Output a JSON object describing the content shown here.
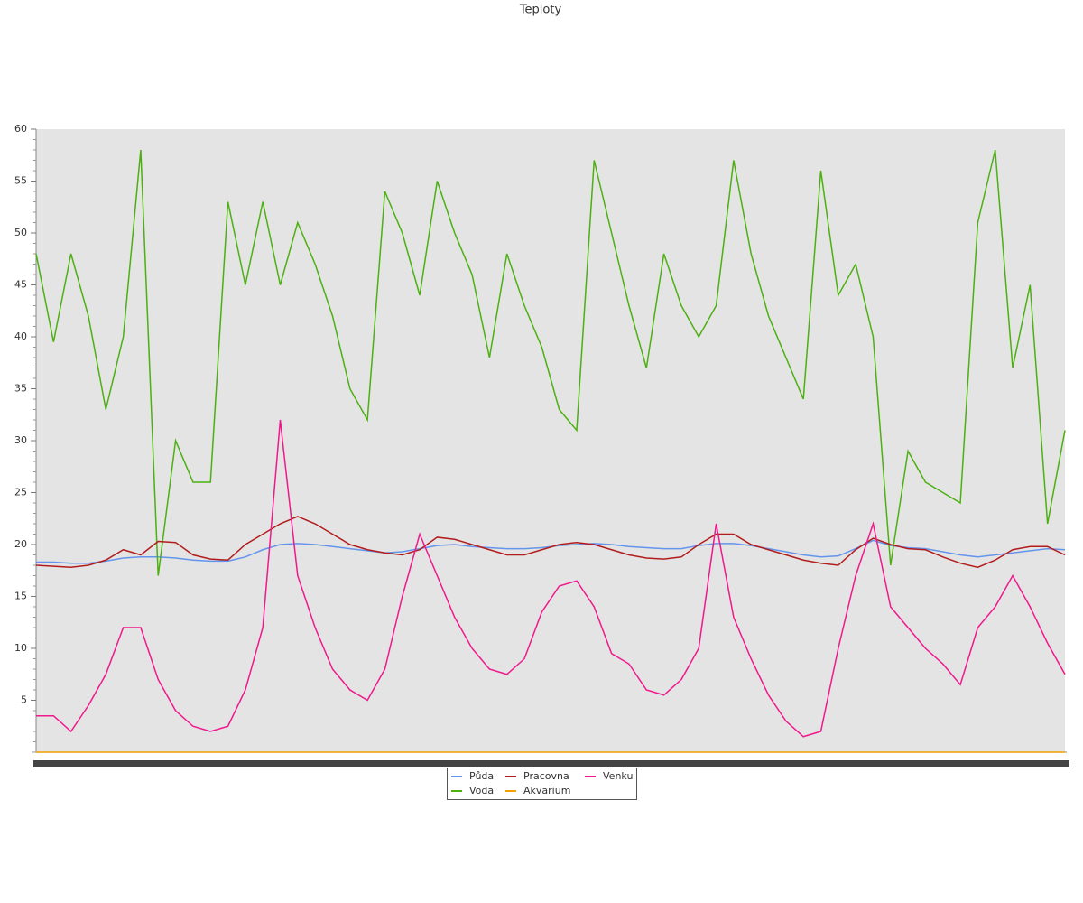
{
  "chart_data": {
    "type": "line",
    "title": "Teploty",
    "ylim": [
      0,
      60
    ],
    "yticks": [
      5,
      10,
      15,
      20,
      25,
      30,
      35,
      40,
      45,
      50,
      55,
      60
    ],
    "grid": false,
    "legend": "bottom",
    "series": [
      {
        "name": "Půda",
        "color": "#6495ed",
        "values": [
          18.3,
          18.3,
          18.2,
          18.2,
          18.4,
          18.7,
          18.8,
          18.8,
          18.7,
          18.5,
          18.4,
          18.4,
          18.8,
          19.5,
          20,
          20.1,
          20,
          19.8,
          19.6,
          19.4,
          19.2,
          19.3,
          19.6,
          19.9,
          20,
          19.8,
          19.7,
          19.6,
          19.6,
          19.7,
          19.9,
          20,
          20.1,
          20,
          19.8,
          19.7,
          19.6,
          19.6,
          19.9,
          20.1,
          20.1,
          19.9,
          19.6,
          19.3,
          19,
          18.8,
          18.9,
          19.6,
          20.4,
          19.9,
          19.7,
          19.6,
          19.3,
          19,
          18.8,
          19,
          19.2,
          19.4,
          19.6,
          19.5
        ]
      },
      {
        "name": "Voda",
        "color": "#4cb010",
        "values": [
          48,
          39.5,
          48,
          42,
          33,
          40,
          58,
          17,
          30,
          26,
          26,
          53,
          45,
          53,
          45,
          51,
          47,
          42,
          35,
          32,
          54,
          50,
          44,
          55,
          50,
          46,
          38,
          48,
          43,
          39,
          33,
          31,
          57,
          50,
          43,
          37,
          48,
          43,
          40,
          43,
          57,
          48,
          42,
          38,
          34,
          56,
          44,
          47,
          40,
          18,
          29,
          26,
          25,
          24,
          51,
          58,
          37,
          45,
          22,
          31
        ]
      },
      {
        "name": "Pracovna",
        "color": "#b21c1c",
        "values": [
          18,
          17.9,
          17.8,
          18,
          18.5,
          19.5,
          19,
          20.3,
          20.2,
          19,
          18.6,
          18.5,
          20,
          21,
          22,
          22.7,
          22,
          21,
          20,
          19.5,
          19.2,
          19,
          19.5,
          20.7,
          20.5,
          20,
          19.5,
          19,
          19,
          19.5,
          20,
          20.2,
          20,
          19.5,
          19,
          18.7,
          18.6,
          18.8,
          20,
          21,
          21,
          20,
          19.5,
          19,
          18.5,
          18.2,
          18,
          19.5,
          20.6,
          20,
          19.6,
          19.5,
          18.8,
          18.2,
          17.8,
          18.5,
          19.5,
          19.8,
          19.8,
          19
        ]
      },
      {
        "name": "Akvarium",
        "color": "#f0a000",
        "values": [
          0,
          0,
          0,
          0,
          0,
          0,
          0,
          0,
          0,
          0,
          0,
          0,
          0,
          0,
          0,
          0,
          0,
          0,
          0,
          0,
          0,
          0,
          0,
          0,
          0,
          0,
          0,
          0,
          0,
          0,
          0,
          0,
          0,
          0,
          0,
          0,
          0,
          0,
          0,
          0,
          0,
          0,
          0,
          0,
          0,
          0,
          0,
          0,
          0,
          0,
          0,
          0,
          0,
          0,
          0,
          0,
          0,
          0,
          0,
          0
        ]
      },
      {
        "name": "Venku",
        "color": "#f0188c",
        "values": [
          3.5,
          3.5,
          2,
          4.5,
          7.5,
          12,
          12,
          7,
          4,
          2.5,
          2,
          2.5,
          6,
          12,
          32,
          17,
          12,
          8,
          6,
          5,
          8,
          15,
          21,
          17,
          13,
          10,
          8,
          7.5,
          9,
          13.5,
          16,
          16.5,
          14,
          9.5,
          8.5,
          6,
          5.5,
          7,
          10,
          22,
          13,
          9,
          5.5,
          3,
          1.5,
          2,
          10,
          17,
          22,
          14,
          12,
          10,
          8.5,
          6.5,
          12,
          14,
          17,
          14,
          10.5,
          7.5
        ]
      }
    ]
  }
}
